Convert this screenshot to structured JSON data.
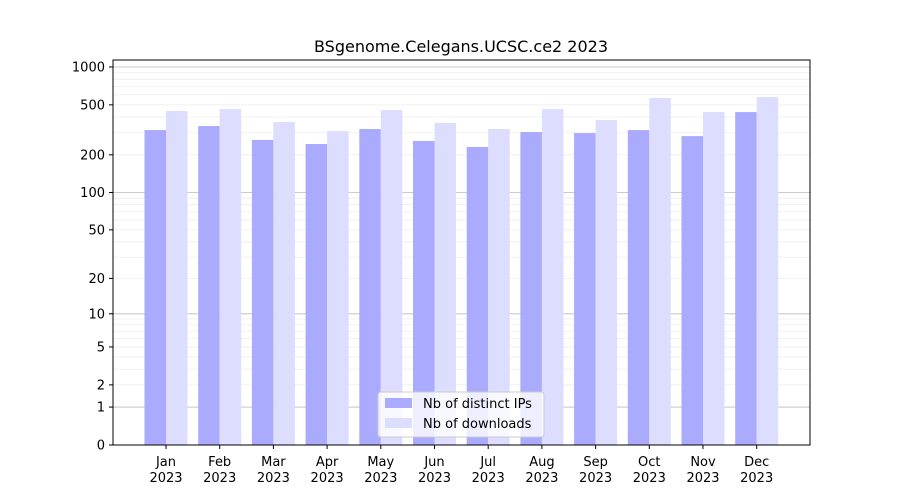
{
  "chart_data": {
    "type": "bar",
    "title": "BSgenome.Celegans.UCSC.ce2 2023",
    "xlabel": "",
    "ylabel": "",
    "yscale": "log10(1+y)",
    "ylim": [
      0,
      1136
    ],
    "yticks": [
      0,
      1,
      2,
      5,
      10,
      20,
      50,
      100,
      200,
      500,
      1000
    ],
    "categories": [
      "Jan\n2023",
      "Feb\n2023",
      "Mar\n2023",
      "Apr\n2023",
      "May\n2023",
      "Jun\n2023",
      "Jul\n2023",
      "Aug\n2023",
      "Sep\n2023",
      "Oct\n2023",
      "Nov\n2023",
      "Dec\n2023"
    ],
    "series": [
      {
        "name": "Nb of distinct IPs",
        "color": "#aaaaff",
        "values": [
          315,
          339,
          263,
          244,
          321,
          258,
          231,
          304,
          298,
          315,
          282,
          438
        ]
      },
      {
        "name": "Nb of downloads",
        "color": "#ddddff",
        "values": [
          447,
          463,
          365,
          309,
          455,
          359,
          321,
          463,
          379,
          567,
          438,
          577
        ]
      }
    ],
    "grid": true,
    "legend": "bottom-center"
  }
}
